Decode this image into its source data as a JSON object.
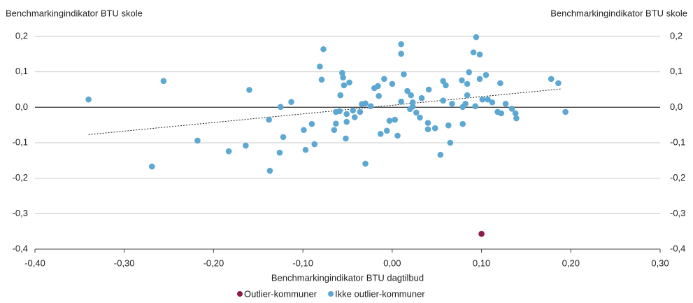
{
  "chart_data": {
    "type": "scatter",
    "ylabel": "Benchmarkingindikator BTU skole",
    "y2label": "Benchmarkingindikator BTU skole",
    "xlabel": "Benchmarkingindikator BTU dagtilbud",
    "xlim": [
      -0.4,
      0.3
    ],
    "xticks": [
      {
        "value": -0.4,
        "label": "-0,40"
      },
      {
        "value": -0.3,
        "label": "-0,30"
      },
      {
        "value": -0.2,
        "label": "-0,20"
      },
      {
        "value": -0.1,
        "label": "-0,10"
      },
      {
        "value": 0,
        "label": "0,00"
      },
      {
        "value": 0.1,
        "label": "0,10"
      },
      {
        "value": 0.2,
        "label": "0,20"
      },
      {
        "value": 0.3,
        "label": "0,30"
      }
    ],
    "ylim": [
      -0.4,
      0.2
    ],
    "yticks": [
      {
        "value": 0.2,
        "label": "0,2"
      },
      {
        "value": 0.1,
        "label": "0,1"
      },
      {
        "value": 0,
        "label": "0,0"
      },
      {
        "value": -0.1,
        "label": "-0,1"
      },
      {
        "value": -0.2,
        "label": "-0,2"
      },
      {
        "value": -0.3,
        "label": "-0,3"
      },
      {
        "value": -0.4,
        "label": "-0,4"
      }
    ],
    "y2lim": [
      -0.4,
      0.2
    ],
    "y2ticks": [
      {
        "value": 0.2,
        "label": "0,2"
      },
      {
        "value": 0.1,
        "label": "0,1"
      },
      {
        "value": 0,
        "label": "0,0"
      },
      {
        "value": -0.1,
        "label": "-0,1"
      },
      {
        "value": -0.2,
        "label": "-0,2"
      },
      {
        "value": -0.3,
        "label": "-0,3"
      },
      {
        "value": -0.4,
        "label": "-0,4"
      }
    ],
    "grid": true,
    "legend": "bottom",
    "trendline": {
      "x": [
        -0.34,
        0.19
      ],
      "y": [
        -0.077,
        0.052
      ]
    },
    "series": [
      {
        "name": "Outlier-kommuner",
        "color": "#8c1c4c",
        "x": [
          0.1
        ],
        "values": [
          -0.357
        ]
      },
      {
        "name": "Ikke outlier-kommuner",
        "color": "#5da8d2",
        "x": [
          -0.34,
          -0.269,
          -0.256,
          -0.218,
          -0.183,
          -0.164,
          -0.16,
          -0.138,
          -0.137,
          -0.126,
          -0.125,
          -0.122,
          -0.113,
          -0.099,
          -0.097,
          -0.09,
          -0.087,
          -0.081,
          -0.079,
          -0.077,
          -0.065,
          -0.063,
          -0.063,
          -0.059,
          -0.058,
          -0.056,
          -0.055,
          -0.054,
          -0.051,
          -0.051,
          -0.052,
          -0.048,
          -0.044,
          -0.042,
          -0.036,
          -0.034,
          -0.03,
          -0.03,
          -0.024,
          -0.02,
          -0.016,
          -0.015,
          -0.013,
          -0.009,
          -0.006,
          -0.003,
          0.0,
          0.003,
          0.006,
          0.01,
          0.01,
          0.01,
          0.013,
          0.017,
          0.02,
          0.021,
          0.023,
          0.023,
          0.027,
          0.031,
          0.033,
          0.04,
          0.04,
          0.041,
          0.048,
          0.054,
          0.057,
          0.057,
          0.06,
          0.063,
          0.065,
          0.067,
          0.078,
          0.079,
          0.079,
          0.082,
          0.084,
          0.084,
          0.086,
          0.091,
          0.094,
          0.093,
          0.098,
          0.098,
          0.101,
          0.105,
          0.107,
          0.112,
          0.118,
          0.121,
          0.122,
          0.127,
          0.134,
          0.138,
          0.139,
          0.178,
          0.186,
          0.194
        ],
        "values": [
          0.022,
          -0.167,
          0.074,
          -0.094,
          -0.124,
          -0.108,
          0.049,
          -0.035,
          -0.179,
          -0.128,
          0.001,
          -0.084,
          0.015,
          -0.064,
          -0.12,
          -0.047,
          -0.104,
          0.115,
          0.078,
          0.164,
          -0.064,
          -0.046,
          -0.013,
          -0.011,
          0.034,
          0.097,
          0.084,
          0.062,
          -0.019,
          -0.041,
          -0.088,
          0.07,
          -0.009,
          -0.028,
          -0.013,
          0.009,
          -0.159,
          0.011,
          0.003,
          0.054,
          0.06,
          0.032,
          -0.075,
          0.08,
          -0.066,
          -0.038,
          0.066,
          -0.035,
          -0.08,
          0.178,
          0.151,
          0.016,
          0.093,
          0.046,
          -0.005,
          0.034,
          0.014,
          0.002,
          -0.015,
          -0.029,
          0.026,
          -0.044,
          -0.062,
          0.05,
          -0.059,
          -0.134,
          0.074,
          0.019,
          0.062,
          -0.051,
          -0.1,
          0.01,
          0.076,
          0.001,
          -0.047,
          0.01,
          0.066,
          0.034,
          0.099,
          0.155,
          0.198,
          0.003,
          0.149,
          0.08,
          0.022,
          0.091,
          0.022,
          0.014,
          -0.013,
          0.068,
          -0.017,
          0.01,
          -0.004,
          -0.017,
          -0.031,
          0.08,
          0.068,
          -0.013
        ]
      }
    ]
  }
}
